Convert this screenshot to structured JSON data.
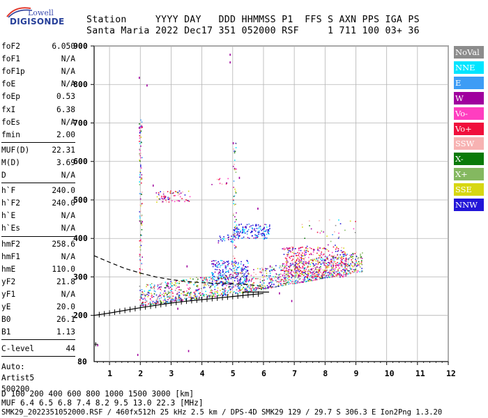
{
  "logo": {
    "brand": "Lowell",
    "product": "DIGISONDE"
  },
  "header": {
    "row1": "Station     YYYY DAY   DDD HHMMSS P1  FFS S AXN PPS IGA PS",
    "row2": "Santa Maria 2022 Dec17 351 052000 RSF     1 711 100 03+ 36"
  },
  "params": {
    "group1": [
      {
        "label": "foF2",
        "value": "6.050"
      },
      {
        "label": "foF1",
        "value": "N/A"
      },
      {
        "label": "foF1p",
        "value": "N/A"
      },
      {
        "label": "foE",
        "value": "N/A"
      },
      {
        "label": "foEp",
        "value": "0.53"
      },
      {
        "label": "fxI",
        "value": "6.38"
      },
      {
        "label": "foEs",
        "value": "N/A"
      },
      {
        "label": "fmin",
        "value": "2.00"
      }
    ],
    "group2": [
      {
        "label": "MUF(D)",
        "value": "22.31"
      },
      {
        "label": "M(D)",
        "value": "3.69"
      },
      {
        "label": "D",
        "value": "N/A"
      }
    ],
    "group3": [
      {
        "label": "h`F",
        "value": "240.0"
      },
      {
        "label": "h`F2",
        "value": "240.0"
      },
      {
        "label": "h`E",
        "value": "N/A"
      },
      {
        "label": "h`Es",
        "value": "N/A"
      }
    ],
    "group4": [
      {
        "label": "hmF2",
        "value": "258.6"
      },
      {
        "label": "hmF1",
        "value": "N/A"
      },
      {
        "label": "hmE",
        "value": "110.0"
      },
      {
        "label": "yF2",
        "value": "21.8"
      },
      {
        "label": "yF1",
        "value": "N/A"
      },
      {
        "label": "yE",
        "value": "20.0"
      },
      {
        "label": "B0",
        "value": "26.1"
      },
      {
        "label": "B1",
        "value": "1.13"
      }
    ],
    "clevel": {
      "label": "C-level",
      "value": "44"
    },
    "auto": [
      "Auto:",
      "Artist5",
      "500200"
    ]
  },
  "legend": [
    {
      "label": "NoVal",
      "color": "#8c8c8c"
    },
    {
      "label": "NNE",
      "color": "#00e5ff"
    },
    {
      "label": "E",
      "color": "#3d9cf5"
    },
    {
      "label": "W",
      "color": "#a0009e"
    },
    {
      "label": "Vo-",
      "color": "#ff3ec0"
    },
    {
      "label": "Vo+",
      "color": "#f0103c"
    },
    {
      "label": "SSW",
      "color": "#f7b2b2"
    },
    {
      "label": "X-",
      "color": "#0a7a0a"
    },
    {
      "label": "X+",
      "color": "#84b860"
    },
    {
      "label": "SSE",
      "color": "#d7d712"
    },
    {
      "label": "NNW",
      "color": "#2215d8"
    }
  ],
  "bottom": {
    "row1": "D     100  200  400  600  800 1000 1500 3000 [km]",
    "row2": "MUF   6.4  6.5  6.8  7.4  8.2  9.5 13.0 22.3 [MHz]",
    "footer": "SMK29_2022351052000.RSF / 460fx512h 25 kHz 2.5 km / DPS-4D SMK29 129 / 29.7 S 306.3 E Ion2Png 1.3.20"
  },
  "chart_data": {
    "type": "scatter",
    "xlim": [
      0.5,
      12
    ],
    "ylim": [
      80,
      900
    ],
    "x_ticks": [
      "1",
      "2",
      "3",
      "4",
      "5",
      "6",
      "7",
      "8",
      "9",
      "10",
      "11",
      "12"
    ],
    "y_ticks": [
      "200",
      "300",
      "400",
      "500",
      "600",
      "700",
      "800",
      "900"
    ],
    "grid": true,
    "legend_placement": "right",
    "trace_model": {
      "x": [
        2.0,
        2.5,
        3.0,
        4.0,
        5.0,
        6.0,
        7.0,
        8.0,
        9.0
      ],
      "h": [
        238,
        242,
        248,
        258,
        268,
        282,
        296,
        310,
        325
      ]
    },
    "profile": [
      {
        "x": 0.5,
        "h": 200
      },
      {
        "x": 1.0,
        "h": 206
      },
      {
        "x": 1.5,
        "h": 213
      },
      {
        "x": 2.0,
        "h": 220
      },
      {
        "x": 2.5,
        "h": 226
      },
      {
        "x": 3.0,
        "h": 232
      },
      {
        "x": 3.5,
        "h": 237
      },
      {
        "x": 4.0,
        "h": 241
      },
      {
        "x": 4.5,
        "h": 245
      },
      {
        "x": 5.0,
        "h": 249
      },
      {
        "x": 5.5,
        "h": 253
      },
      {
        "x": 6.0,
        "h": 257
      }
    ],
    "dashed_curve": [
      {
        "x": 0.5,
        "h": 355
      },
      {
        "x": 1.0,
        "h": 338
      },
      {
        "x": 1.5,
        "h": 322
      },
      {
        "x": 2.0,
        "h": 310
      },
      {
        "x": 2.5,
        "h": 300
      },
      {
        "x": 3.0,
        "h": 293
      },
      {
        "x": 3.5,
        "h": 288
      },
      {
        "x": 4.0,
        "h": 285
      },
      {
        "x": 4.5,
        "h": 283
      },
      {
        "x": 5.0,
        "h": 282
      },
      {
        "x": 5.5,
        "h": 280
      },
      {
        "x": 6.0,
        "h": 275
      }
    ],
    "clusters": [
      {
        "x0": 2.0,
        "x1": 9.2,
        "h0": 225,
        "h1": 300,
        "n": 1400,
        "mix": "all"
      },
      {
        "x0": 4.3,
        "x1": 5.5,
        "h0": 280,
        "h1": 345,
        "n": 220,
        "mix": "blue"
      },
      {
        "x0": 5.0,
        "x1": 6.2,
        "h0": 400,
        "h1": 440,
        "n": 150,
        "mix": "blue"
      },
      {
        "x0": 4.5,
        "x1": 5.0,
        "h0": 390,
        "h1": 410,
        "n": 25,
        "mix": "blue"
      },
      {
        "x0": 6.6,
        "x1": 8.7,
        "h0": 300,
        "h1": 380,
        "n": 420,
        "mix": "warm"
      },
      {
        "x0": 2.5,
        "x1": 3.6,
        "h0": 495,
        "h1": 525,
        "n": 70,
        "mix": "warm"
      },
      {
        "x0": 4.3,
        "x1": 5.0,
        "h0": 540,
        "h1": 560,
        "n": 12,
        "mix": "warm"
      },
      {
        "x0": 5.0,
        "x1": 5.1,
        "h0": 300,
        "h1": 660,
        "n": 60,
        "mix": "all"
      },
      {
        "x0": 1.95,
        "x1": 2.05,
        "h0": 240,
        "h1": 720,
        "n": 110,
        "mix": "all"
      },
      {
        "x0": 7.0,
        "x1": 9.0,
        "h0": 380,
        "h1": 450,
        "n": 30,
        "mix": "all"
      }
    ]
  }
}
